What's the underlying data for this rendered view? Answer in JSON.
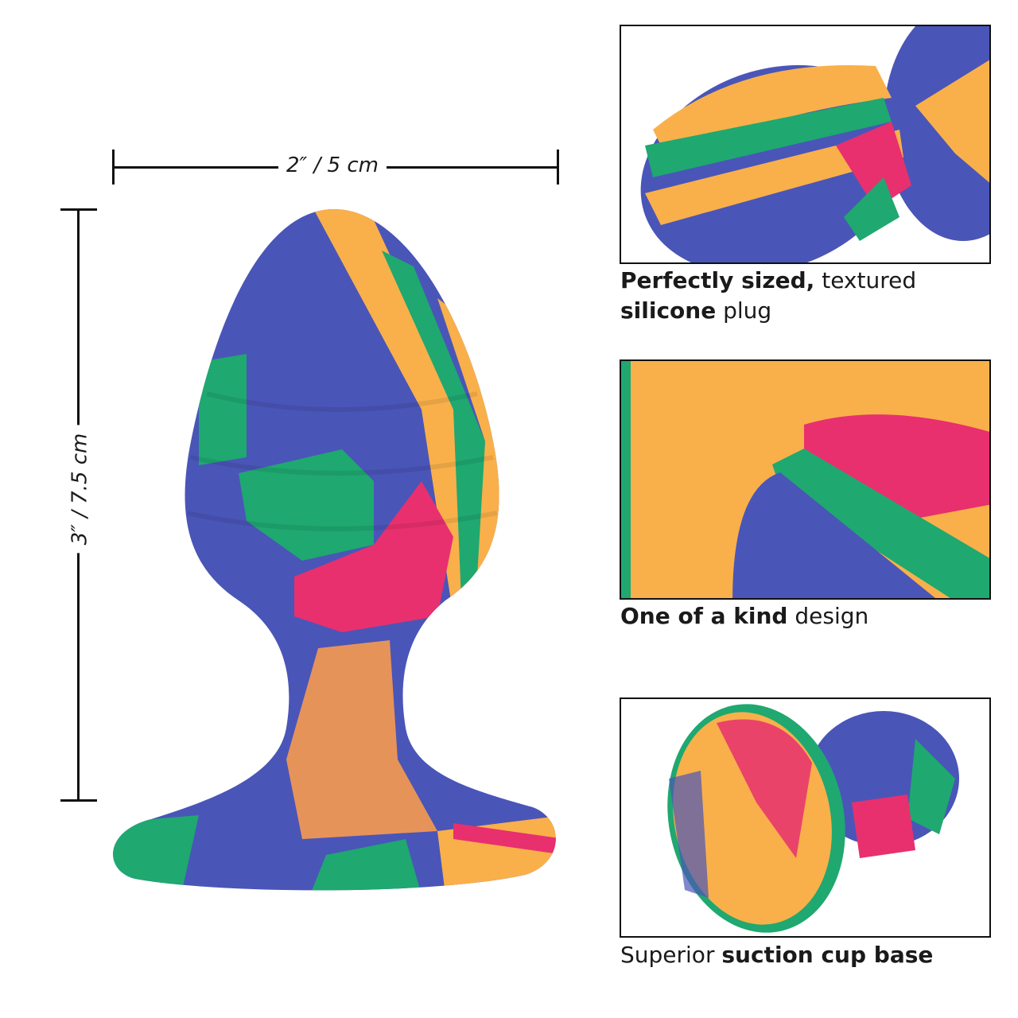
{
  "dimensions": {
    "width_label": "2″ / 5 cm",
    "height_label": "3″ / 7.5 cm"
  },
  "colors": {
    "blue": "#4a55b8",
    "orange": "#f9b04a",
    "pink": "#e8306e",
    "green": "#1fa870"
  },
  "panels": [
    {
      "caption_bold_1": "Perfectly sized,",
      "caption_regular_1": " textured ",
      "caption_bold_2": "silicone",
      "caption_regular_2": " plug"
    },
    {
      "caption_bold_1": "One of a kind",
      "caption_regular_1": " design"
    },
    {
      "caption_regular_1": "Superior ",
      "caption_bold_1": "suction cup base"
    }
  ]
}
